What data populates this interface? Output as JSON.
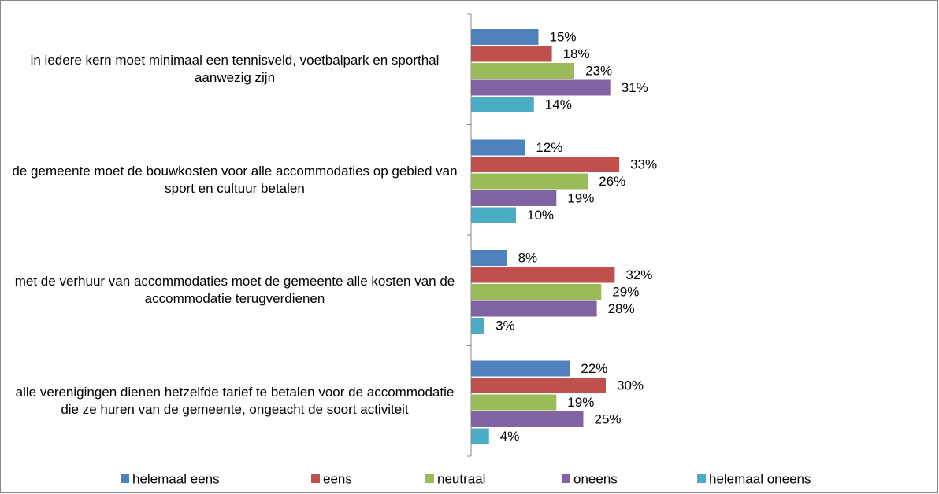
{
  "chart_data": {
    "type": "bar",
    "orientation": "horizontal",
    "categories": [
      "in iedere kern moet minimaal een tennisveld, voetbalpark en sporthal aanwezig zijn",
      "de gemeente moet de bouwkosten voor alle accommodaties op gebied van sport en cultuur betalen",
      "met de verhuur van accommodaties moet de gemeente alle kosten van de accommodatie terugverdienen",
      "alle verenigingen dienen hetzelfde tarief te betalen voor de accommodatie die ze huren van de gemeente, ongeacht de soort activiteit"
    ],
    "series": [
      {
        "name": "helemaal eens",
        "color": "#4f81bd",
        "values": [
          15,
          12,
          8,
          22
        ],
        "value_labels": [
          "15%",
          "12%",
          "8%",
          "22%"
        ]
      },
      {
        "name": "eens",
        "color": "#c0504d",
        "values": [
          18,
          33,
          32,
          30
        ],
        "value_labels": [
          "18%",
          "33%",
          "32%",
          "30%"
        ]
      },
      {
        "name": "neutraal",
        "color": "#9bbb59",
        "values": [
          23,
          26,
          29,
          19
        ],
        "value_labels": [
          "23%",
          "26%",
          "29%",
          "19%"
        ]
      },
      {
        "name": "oneens",
        "color": "#8064a2",
        "values": [
          31,
          19,
          28,
          25
        ],
        "value_labels": [
          "31%",
          "19%",
          "28%",
          "25%"
        ]
      },
      {
        "name": "helemaal oneens",
        "color": "#4bacc6",
        "values": [
          14,
          10,
          3,
          4
        ],
        "value_labels": [
          "14%",
          "10%",
          "3%",
          "4%"
        ]
      }
    ],
    "legend": "bottom"
  }
}
